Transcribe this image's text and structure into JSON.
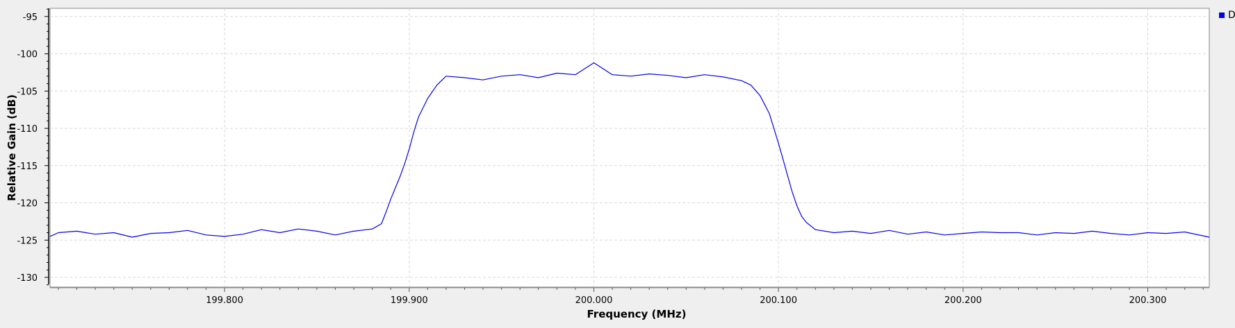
{
  "chart_data": {
    "type": "line",
    "title": "",
    "xlabel": "Frequency (MHz)",
    "ylabel": "Relative Gain (dB)",
    "xlim": [
      199.7055,
      200.3333
    ],
    "ylim": [
      -131.3,
      -93.9
    ],
    "x_ticks": [
      199.8,
      199.9,
      200.0,
      200.1,
      200.2,
      200.3
    ],
    "x_tick_labels": [
      "199.800",
      "199.900",
      "200.000",
      "200.100",
      "200.200",
      "200.300"
    ],
    "y_ticks": [
      -95,
      -100,
      -105,
      -110,
      -115,
      -120,
      -125,
      -130
    ],
    "y_tick_labels": [
      "-95",
      "-100",
      "-105",
      "-110",
      "-115",
      "-120",
      "-125",
      "-130"
    ],
    "grid": true,
    "legend_position": "top-right",
    "line_color": "#0000ee",
    "series": [
      {
        "legend_label": "D",
        "x": [
          199.7055,
          199.71,
          199.72,
          199.73,
          199.74,
          199.75,
          199.76,
          199.77,
          199.78,
          199.79,
          199.8,
          199.81,
          199.82,
          199.83,
          199.84,
          199.85,
          199.86,
          199.87,
          199.88,
          199.885,
          199.8875,
          199.89,
          199.8925,
          199.895,
          199.8975,
          199.9,
          199.9025,
          199.905,
          199.91,
          199.915,
          199.92,
          199.93,
          199.94,
          199.95,
          199.96,
          199.97,
          199.98,
          199.99,
          200.0,
          200.01,
          200.02,
          200.03,
          200.04,
          200.05,
          200.06,
          200.07,
          200.08,
          200.085,
          200.09,
          200.095,
          200.0975,
          200.1,
          200.1025,
          200.105,
          200.1075,
          200.11,
          200.1125,
          200.115,
          200.12,
          200.13,
          200.14,
          200.15,
          200.16,
          200.17,
          200.18,
          200.19,
          200.2,
          200.21,
          200.22,
          200.23,
          200.24,
          200.25,
          200.26,
          200.27,
          200.28,
          200.29,
          200.3,
          200.31,
          200.32,
          200.3333
        ],
        "y": [
          -124.5,
          -124.0,
          -123.8,
          -124.2,
          -124.0,
          -124.6,
          -124.1,
          -124.0,
          -123.7,
          -124.3,
          -124.5,
          -124.2,
          -123.6,
          -124.0,
          -123.5,
          -123.8,
          -124.3,
          -123.8,
          -123.5,
          -122.8,
          -121.2,
          -119.5,
          -118.0,
          -116.5,
          -114.8,
          -112.8,
          -110.5,
          -108.5,
          -106.0,
          -104.2,
          -103.0,
          -103.2,
          -103.5,
          -103.0,
          -102.8,
          -103.2,
          -102.6,
          -102.8,
          -101.2,
          -102.8,
          -103.0,
          -102.7,
          -102.9,
          -103.2,
          -102.8,
          -103.1,
          -103.6,
          -104.2,
          -105.6,
          -108.0,
          -110.0,
          -112.0,
          -114.2,
          -116.4,
          -118.6,
          -120.4,
          -121.8,
          -122.6,
          -123.6,
          -124.0,
          -123.8,
          -124.1,
          -123.7,
          -124.2,
          -123.9,
          -124.3,
          -124.1,
          -123.9,
          -124.0,
          -124.0,
          -124.3,
          -124.0,
          -124.1,
          -123.8,
          -124.1,
          -124.3,
          -124.0,
          -124.1,
          -123.9,
          -124.6
        ]
      }
    ]
  }
}
